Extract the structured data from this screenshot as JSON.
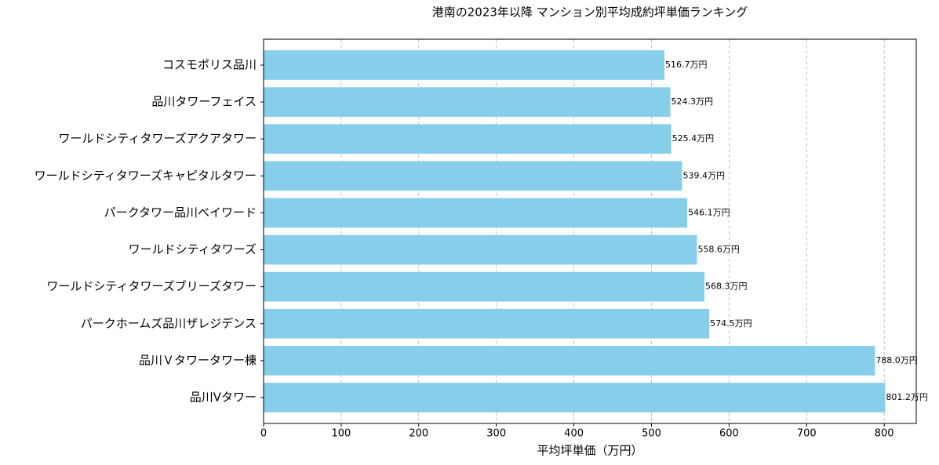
{
  "chart_data": {
    "type": "barh",
    "title": "港南の2023年以降 マンション別平均成約坪単価ランキング",
    "xlabel": "平均坪単価（万円）",
    "categories": [
      "コスモポリス品川",
      "品川タワーフェイス",
      "ワールドシティタワーズアクアタワー",
      "ワールドシティタワーズキャピタルタワー",
      "パークタワー品川ベイワード",
      "ワールドシティタワーズ",
      "ワールドシティタワーズブリーズタワー",
      "パークホームズ品川ザレジデンス",
      "品川Ｖタワータワー棟",
      "品川Vタワー"
    ],
    "values": [
      516.7,
      524.3,
      525.4,
      539.4,
      546.1,
      558.6,
      568.3,
      574.5,
      788.0,
      801.2
    ],
    "value_labels": [
      "516.7万円",
      "524.3万円",
      "525.4万円",
      "539.4万円",
      "546.1万円",
      "558.6万円",
      "568.3万円",
      "574.5万円",
      "788.0万円",
      "801.2万円"
    ],
    "color": "#87ceeb",
    "xlim": [
      0,
      841.26
    ],
    "xticks": [
      0,
      100,
      200,
      300,
      400,
      500,
      600,
      700,
      800
    ],
    "grid": true
  }
}
